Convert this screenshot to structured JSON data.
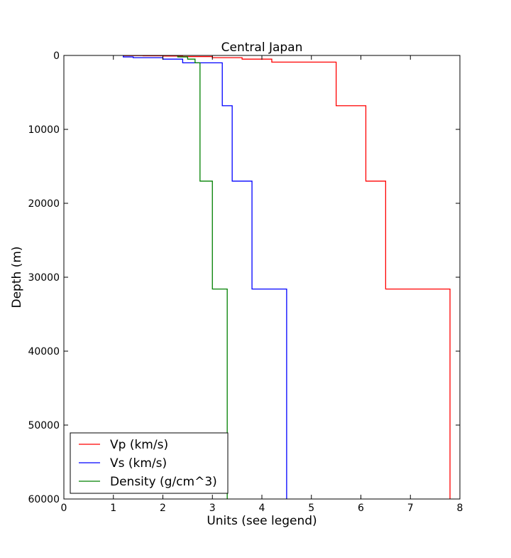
{
  "chart_data": {
    "type": "line",
    "title": "Central Japan",
    "xlabel": "Units (see legend)",
    "ylabel": "Depth (m)",
    "xlim": [
      0,
      8
    ],
    "ylim": [
      0,
      60000
    ],
    "y_inverted": true,
    "grid": false,
    "legend_position": "bottom-left",
    "x_ticks": [
      "0",
      "1",
      "2",
      "3",
      "4",
      "5",
      "6",
      "7",
      "8"
    ],
    "y_ticks": [
      "0",
      "10000",
      "20000",
      "30000",
      "40000",
      "50000",
      "60000"
    ],
    "series": [
      {
        "name": "Vp (km/s)",
        "color": "#ff0000",
        "x": [
          1.2,
          1.2,
          1.6,
          1.6,
          2.0,
          2.0,
          2.4,
          2.4,
          3.0,
          3.0,
          3.6,
          3.6,
          4.2,
          4.2,
          5.5,
          5.5,
          6.1,
          6.1,
          6.5,
          6.5,
          7.8,
          7.8
        ],
        "y": [
          0,
          20,
          20,
          50,
          50,
          80,
          80,
          150,
          150,
          300,
          300,
          500,
          500,
          900,
          900,
          6800,
          6800,
          17000,
          17000,
          31600,
          31600,
          60000
        ]
      },
      {
        "name": "Vs (km/s)",
        "color": "#0000ff",
        "x": [
          1.2,
          1.2,
          1.4,
          1.4,
          2.0,
          2.0,
          2.4,
          2.4,
          3.2,
          3.2,
          3.4,
          3.4,
          3.8,
          3.8,
          4.5,
          4.5
        ],
        "y": [
          0,
          200,
          200,
          300,
          300,
          500,
          500,
          1000,
          1000,
          6800,
          6800,
          17000,
          17000,
          31600,
          31600,
          60000
        ]
      },
      {
        "name": "Density (g/cm^3)",
        "color": "#008000",
        "x": [
          2.3,
          2.3,
          2.5,
          2.5,
          2.65,
          2.65,
          2.75,
          2.75,
          3.0,
          3.0,
          3.3,
          3.3
        ],
        "y": [
          0,
          200,
          200,
          500,
          500,
          1000,
          1000,
          17000,
          17000,
          31600,
          31600,
          60000
        ]
      }
    ]
  }
}
